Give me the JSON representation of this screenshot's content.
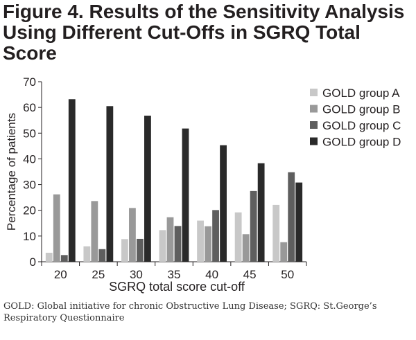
{
  "figure": {
    "title_lines": [
      "Figure 4. Results of the Sensitivity Analysis",
      "Using Different Cut-Offs in SGRQ Total",
      "Score"
    ],
    "footnote_lines": [
      "GOLD: Global initiative for chronic Obstructive Lung Disease; SGRQ: St.George’s",
      "Respiratory Questionnaire"
    ]
  },
  "chart_data": {
    "type": "bar",
    "xlabel": "SGRQ total score cut-off",
    "ylabel": "Percentage of patients",
    "ylim": [
      0,
      70
    ],
    "yticks": [
      0,
      10,
      20,
      30,
      40,
      50,
      60,
      70
    ],
    "categories": [
      "20",
      "25",
      "30",
      "35",
      "40",
      "45",
      "50"
    ],
    "series": [
      {
        "name": "GOLD group A",
        "color": "#c8c8c8",
        "values": [
          3.5,
          6,
          8.8,
          12.3,
          16,
          19.2,
          22.1
        ]
      },
      {
        "name": "GOLD group B",
        "color": "#999999",
        "values": [
          26.2,
          23.6,
          20.9,
          17.3,
          13.8,
          10.7,
          7.6
        ]
      },
      {
        "name": "GOLD group C",
        "color": "#5e5e5e",
        "values": [
          2.6,
          4.9,
          8.9,
          13.9,
          20.1,
          27.5,
          34.8
        ]
      },
      {
        "name": "GOLD group D",
        "color": "#2a2a2a",
        "values": [
          63.2,
          60.5,
          56.8,
          51.8,
          45.3,
          38.3,
          30.8
        ]
      }
    ],
    "legend_position": "top-right",
    "grid": false
  }
}
